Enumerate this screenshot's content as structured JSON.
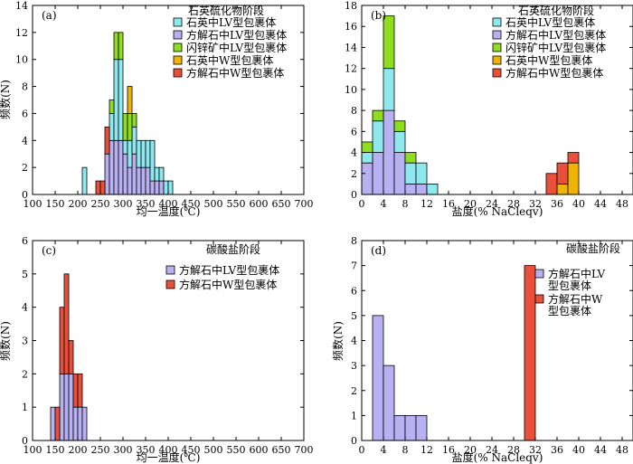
{
  "colors": {
    "cyan": "#8ee8ee",
    "purple": "#b8b0f0",
    "green": "#8fdc20",
    "orange": "#f0b400",
    "red": "#e8503c"
  },
  "chart_data": [
    {
      "id": "a",
      "type": "bar",
      "stacked": true,
      "panel_label": "(a)",
      "stage": "石英硫化物阶段",
      "xlabel": "均一温度(℃)",
      "ylabel": "频数(N)",
      "xlim": [
        100,
        700
      ],
      "ylim": [
        0,
        14
      ],
      "xticks": [
        100,
        150,
        200,
        250,
        300,
        350,
        400,
        450,
        500,
        550,
        600,
        650,
        700
      ],
      "yticks": [
        0,
        2,
        4,
        6,
        8,
        10,
        12,
        14
      ],
      "bin_width": 10,
      "legend_position": "top-right",
      "legend_labels": [
        "石英中LV型包裹体",
        "方解石中LV型包裹体",
        "闪锌矿中LV型包裹体",
        "石英中W型包裹体",
        "方解石中W型包裹体"
      ],
      "series": [
        {
          "color": "purple",
          "points": [
            [
              260,
              3
            ],
            [
              270,
              4
            ],
            [
              280,
              4
            ],
            [
              290,
              4
            ],
            [
              300,
              3
            ],
            [
              310,
              2
            ],
            [
              320,
              3
            ],
            [
              330,
              2
            ],
            [
              340,
              2
            ],
            [
              350,
              2
            ],
            [
              360,
              1
            ],
            [
              370,
              1
            ],
            [
              380,
              1
            ]
          ]
        },
        {
          "color": "cyan",
          "points": [
            [
              210,
              2
            ],
            [
              270,
              2
            ],
            [
              280,
              6
            ],
            [
              290,
              6
            ],
            [
              300,
              1
            ],
            [
              310,
              2
            ],
            [
              320,
              2
            ],
            [
              330,
              2
            ],
            [
              340,
              2
            ],
            [
              350,
              2
            ],
            [
              360,
              3
            ],
            [
              370,
              1
            ],
            [
              380,
              1
            ],
            [
              390,
              1
            ],
            [
              400,
              1
            ]
          ]
        },
        {
          "color": "green",
          "points": [
            [
              270,
              1
            ],
            [
              280,
              2
            ],
            [
              290,
              2
            ],
            [
              300,
              2
            ],
            [
              310,
              2
            ],
            [
              320,
              1
            ]
          ]
        },
        {
          "color": "orange",
          "points": [
            [
              310,
              2
            ]
          ]
        },
        {
          "color": "red",
          "points": [
            [
              240,
              1
            ],
            [
              250,
              1
            ],
            [
              260,
              2
            ]
          ]
        }
      ]
    },
    {
      "id": "b",
      "type": "bar",
      "stacked": true,
      "panel_label": "(b)",
      "stage": "石英硫化物阶段",
      "xlabel": "盐度(% NaCleqv)",
      "ylabel": "",
      "xlim": [
        0,
        50
      ],
      "ylim": [
        0,
        18
      ],
      "xticks": [
        0,
        4,
        8,
        12,
        16,
        20,
        24,
        28,
        32,
        36,
        40,
        44,
        48
      ],
      "yticks": [
        0,
        2,
        4,
        6,
        8,
        10,
        12,
        14,
        16,
        18
      ],
      "bin_width": 2,
      "legend_position": "top-right",
      "legend_labels": [
        "石英中LV型包裹体",
        "方解石中LV型包裹体",
        "闪锌矿中LV型包裹体",
        "石英中W型包裹体",
        "方解石中W型包裹体"
      ],
      "series": [
        {
          "color": "purple",
          "points": [
            [
              0,
              3
            ],
            [
              2,
              4
            ],
            [
              4,
              8
            ],
            [
              6,
              4
            ],
            [
              8,
              1
            ],
            [
              10,
              1
            ]
          ]
        },
        {
          "color": "cyan",
          "points": [
            [
              0,
              1
            ],
            [
              2,
              3
            ],
            [
              4,
              4
            ],
            [
              6,
              2
            ],
            [
              8,
              2
            ],
            [
              10,
              2
            ],
            [
              12,
              1
            ]
          ]
        },
        {
          "color": "green",
          "points": [
            [
              0,
              1
            ],
            [
              2,
              1
            ],
            [
              4,
              5
            ],
            [
              6,
              1
            ],
            [
              8,
              1
            ]
          ]
        },
        {
          "color": "orange",
          "points": [
            [
              36,
              1
            ],
            [
              38,
              3
            ]
          ]
        },
        {
          "color": "red",
          "points": [
            [
              34,
              2
            ],
            [
              36,
              2
            ],
            [
              38,
              1
            ]
          ]
        }
      ]
    },
    {
      "id": "c",
      "type": "bar",
      "stacked": true,
      "panel_label": "(c)",
      "stage": "碳酸盐阶段",
      "xlabel": "均一温度(℃)",
      "ylabel": "频数(N)",
      "xlim": [
        100,
        700
      ],
      "ylim": [
        0,
        6
      ],
      "xticks": [
        100,
        150,
        200,
        250,
        300,
        350,
        400,
        450,
        500,
        550,
        600,
        650,
        700
      ],
      "yticks": [
        0,
        1,
        2,
        3,
        4,
        5,
        6
      ],
      "bin_width": 10,
      "legend_position": "top-right",
      "legend_labels": [
        "方解石中LV型包裹体",
        "方解石中W型包裹体"
      ],
      "series": [
        {
          "color": "purple",
          "points": [
            [
              140,
              1
            ],
            [
              160,
              2
            ],
            [
              170,
              2
            ],
            [
              180,
              2
            ],
            [
              190,
              1
            ],
            [
              200,
              1
            ],
            [
              210,
              1
            ]
          ]
        },
        {
          "color": "red",
          "points": [
            [
              150,
              1
            ],
            [
              160,
              2
            ],
            [
              170,
              3
            ],
            [
              180,
              1
            ],
            [
              190,
              1
            ],
            [
              200,
              1
            ]
          ]
        }
      ]
    },
    {
      "id": "d",
      "type": "bar",
      "stacked": true,
      "panel_label": "(d)",
      "stage": "碳酸盐阶段",
      "xlabel": "盐度(% NaCleqv)",
      "ylabel": "频数(N)",
      "xlim": [
        0,
        50
      ],
      "ylim": [
        0,
        8
      ],
      "xticks": [
        0,
        4,
        8,
        12,
        16,
        20,
        24,
        28,
        32,
        36,
        40,
        44,
        48
      ],
      "yticks": [
        0,
        1,
        2,
        3,
        4,
        5,
        6,
        7,
        8
      ],
      "bin_width": 2,
      "legend_position": "top-right",
      "legend_labels": [
        "方解石中LV\n型包裹体",
        "方解石中W\n型包裹体"
      ],
      "series": [
        {
          "color": "purple",
          "points": [
            [
              2,
              5
            ],
            [
              4,
              3
            ],
            [
              6,
              1
            ],
            [
              8,
              1
            ],
            [
              10,
              1
            ]
          ]
        },
        {
          "color": "red",
          "points": [
            [
              30,
              7
            ]
          ]
        }
      ]
    }
  ]
}
